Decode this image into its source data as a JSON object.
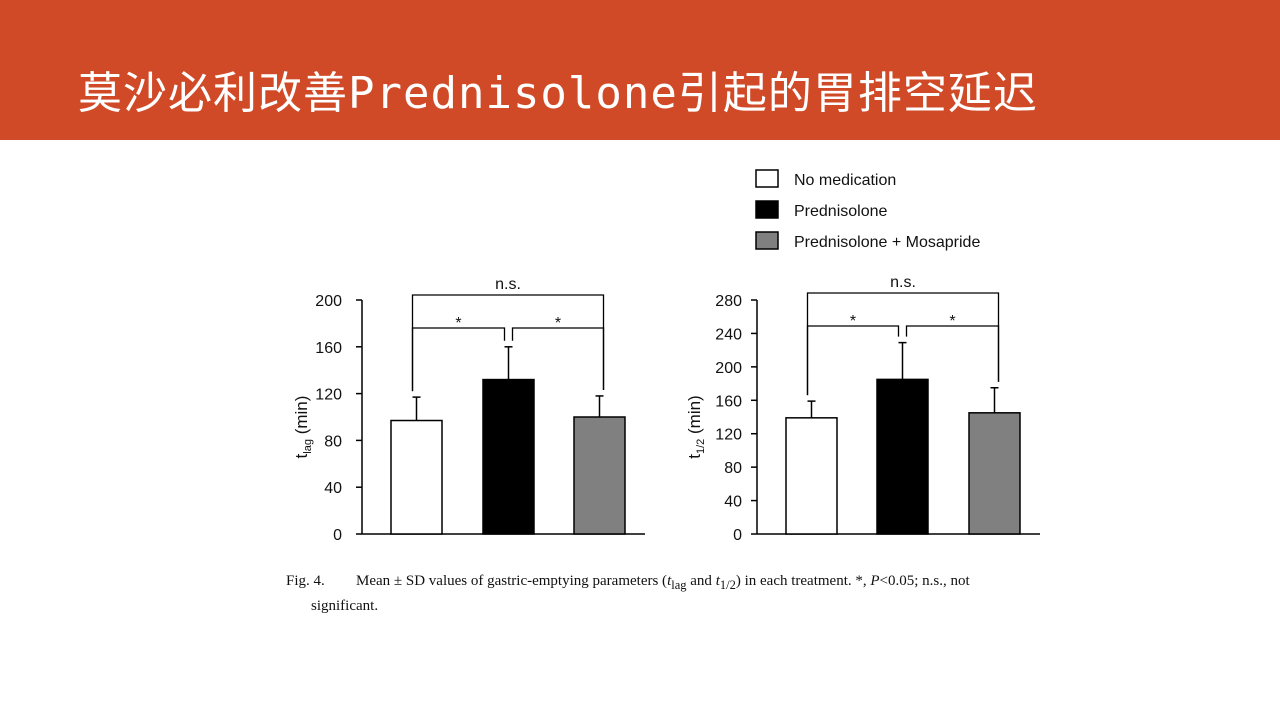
{
  "slide": {
    "title": "莫沙必利改善Prednisolone引起的胃排空延迟",
    "header_color": "#D04A27"
  },
  "legend": [
    {
      "label": "No medication",
      "color": "#ffffff"
    },
    {
      "label": "Prednisolone",
      "color": "#000000"
    },
    {
      "label": "Prednisolone + Mosapride",
      "color": "#808080"
    }
  ],
  "chart_data": [
    {
      "type": "bar",
      "ylabel_main": "t",
      "ylabel_sub": "lag",
      "ylabel_unit": " (min)",
      "ylim": [
        0,
        200
      ],
      "yticks": [
        0,
        40,
        80,
        120,
        160,
        200
      ],
      "categories": [
        "No medication",
        "Prednisolone",
        "Prednisolone + Mosapride"
      ],
      "values": [
        97,
        132,
        100
      ],
      "errors": [
        20,
        28,
        18
      ],
      "colors": [
        "#ffffff",
        "#000000",
        "#808080"
      ],
      "significance": [
        {
          "from": 0,
          "to": 1,
          "label": "*"
        },
        {
          "from": 1,
          "to": 2,
          "label": "*"
        },
        {
          "from": 0,
          "to": 2,
          "label": "n.s."
        }
      ]
    },
    {
      "type": "bar",
      "ylabel_main": "t",
      "ylabel_sub": "1/2",
      "ylabel_unit": " (min)",
      "ylim": [
        0,
        280
      ],
      "yticks": [
        0,
        40,
        80,
        120,
        160,
        200,
        240,
        280
      ],
      "categories": [
        "No medication",
        "Prednisolone",
        "Prednisolone + Mosapride"
      ],
      "values": [
        139,
        185,
        145
      ],
      "errors": [
        20,
        44,
        30
      ],
      "colors": [
        "#ffffff",
        "#000000",
        "#808080"
      ],
      "significance": [
        {
          "from": 0,
          "to": 1,
          "label": "*"
        },
        {
          "from": 1,
          "to": 2,
          "label": "*"
        },
        {
          "from": 0,
          "to": 2,
          "label": "n.s."
        }
      ]
    }
  ],
  "caption": {
    "label": "Fig. 4.",
    "part1": "Mean ± SD values of gastric-emptying parameters (",
    "t1": "t",
    "sub1": "lag",
    "and": " and ",
    "t2": "t",
    "sub2": "1/2",
    "part2": ") in each treatment. *, ",
    "p": "P",
    "part3": "<0.05; n.s., not",
    "line2": "significant."
  }
}
